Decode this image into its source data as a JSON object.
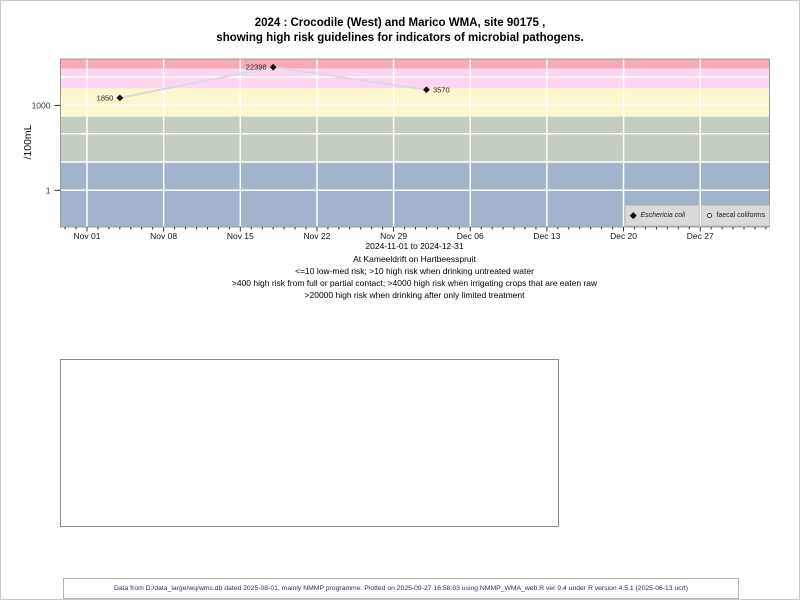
{
  "title": {
    "line1": "2024 : Crocodile (West) and Marico WMA, site 90175 ,",
    "line2": "showing high risk guidelines for indicators of microbial pathogens."
  },
  "chart_data": {
    "type": "scatter",
    "ylabel": "/100mL",
    "x_axis": {
      "start_date": "2024-11-01",
      "end_date": "2024-12-31",
      "tick_labels": [
        "Nov 01",
        "Nov 08",
        "Nov 15",
        "Nov 22",
        "Nov 29",
        "Dec 06",
        "Dec 13",
        "Dec 20",
        "Dec 27"
      ],
      "tick_interval_days": 7,
      "minor_tick_interval_days": 1
    },
    "y_axis": {
      "scale": "log",
      "tick_labels": [
        "1000",
        "1"
      ],
      "tick_values": [
        1000,
        1
      ],
      "range": [
        0.05,
        44000
      ]
    },
    "grid": true,
    "gridline_decades": [
      1,
      10,
      100,
      1000,
      10000
    ],
    "risk_bands": [
      {
        "from": 20000,
        "to": 44000,
        "color": "#f7a9b6",
        "meaning": ">20000 high risk when drinking after only limited treatment"
      },
      {
        "from": 4000,
        "to": 20000,
        "color": "#fbd6ee",
        "meaning": ">4000 high risk when irrigating crops that are eaten raw"
      },
      {
        "from": 400,
        "to": 4000,
        "color": "#fcf7cc",
        "meaning": ">400 high risk from full or partial contact"
      },
      {
        "from": 10,
        "to": 400,
        "color": "#c3cdc0",
        "meaning": ">10 high risk when drinking untreated water"
      },
      {
        "from": 0.05,
        "to": 10,
        "color": "#a3b3cb",
        "meaning": "<=10 low-med risk"
      }
    ],
    "series": [
      {
        "name": "Eschericia coli",
        "marker": "filled-diamond",
        "line_color": "#dadae3",
        "points": [
          {
            "date": "2024-11-04",
            "value": 1850,
            "label": "1850",
            "label_side": "left"
          },
          {
            "date": "2024-11-18",
            "value": 22398,
            "label": "22398",
            "label_side": "left"
          },
          {
            "date": "2024-12-02",
            "value": 3570,
            "label": "3570",
            "label_side": "right"
          }
        ]
      },
      {
        "name": "faecal coliforms",
        "marker": "open-circle",
        "line_color": "#dadae3",
        "points": []
      }
    ],
    "legend": {
      "position": "bottom-right",
      "entries": [
        {
          "label": "Eschericia coli",
          "marker": "filled-diamond"
        },
        {
          "label": "faecal coliforms",
          "marker": "open-circle"
        }
      ]
    }
  },
  "caption": {
    "range": "2024-11-01 to 2024-12-31",
    "site": "At Kameeldrift on Hartbeesspruit",
    "guideline1": "<=10 low-med risk; >10 high risk when drinking untreated water",
    "guideline2": ">400 high risk from full or partial contact; >4000 high risk when irrigating crops that are eaten raw",
    "guideline3": ">20000 high risk when drinking after only limited treatment"
  },
  "footer": {
    "text": "Data from D:/data_large/wq/wms.db dated 2025-08-01, mainly NMMP programme. Plotted on 2025-09-27 16:58:03 using NMMP_WMA_web.R ver 9.4 under R version 4.5.1 (2025-06-13 ucrt)"
  }
}
